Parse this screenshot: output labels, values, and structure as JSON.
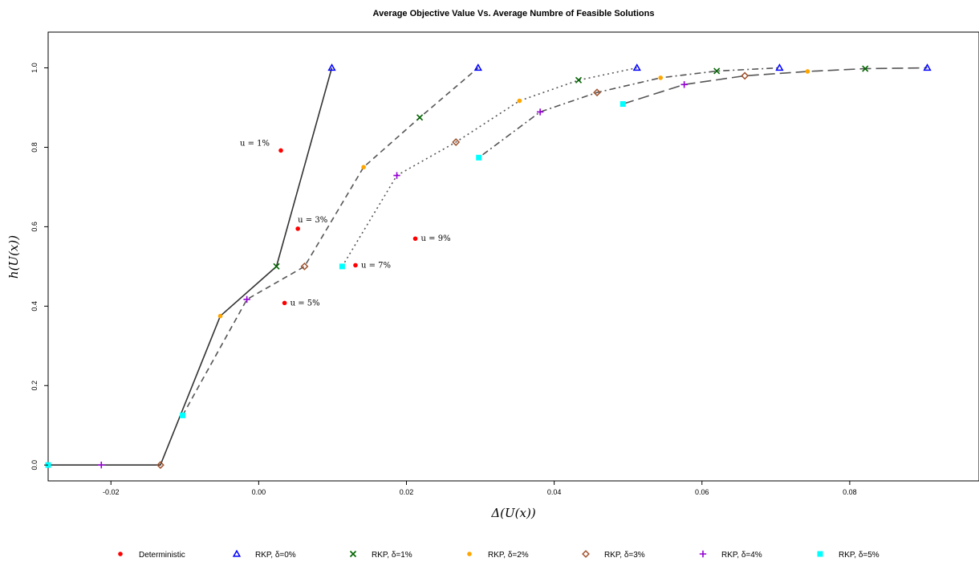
{
  "chart_data": {
    "type": "line",
    "title": "Average Objective Value Vs. Average Numbre of Feasible Solutions",
    "xlabel": "Δ(U(x))",
    "ylabel": "h(U(x))",
    "xlim": [
      -0.0285,
      0.0975
    ],
    "ylim": [
      -0.04,
      1.09
    ],
    "x_ticks": [
      -0.02,
      0.0,
      0.02,
      0.04,
      0.06,
      0.08
    ],
    "x_tick_labels": [
      "-0.02",
      "0.00",
      "0.02",
      "0.04",
      "0.06",
      "0.08"
    ],
    "y_ticks": [
      0.0,
      0.2,
      0.4,
      0.6,
      0.8,
      1.0
    ],
    "y_tick_labels": [
      "0.0",
      "0.2",
      "0.4",
      "0.6",
      "0.8",
      "1.0"
    ],
    "grid": false,
    "legend_position": "bottom",
    "lines": [
      {
        "style": "solid",
        "points": [
          [
            -0.0285,
            0.0
          ],
          [
            -0.0133,
            0.0
          ],
          [
            -0.0052,
            0.375
          ],
          [
            0.0024,
            0.5
          ],
          [
            0.0099,
            1.0
          ]
        ]
      },
      {
        "style": "dashed",
        "points": [
          [
            -0.0103,
            0.125
          ],
          [
            -0.0016,
            0.417
          ],
          [
            0.0062,
            0.5
          ],
          [
            0.0142,
            0.75
          ],
          [
            0.0218,
            0.875
          ],
          [
            0.0297,
            1.0
          ]
        ]
      },
      {
        "style": "dotted",
        "points": [
          [
            0.0113,
            0.5
          ],
          [
            0.0187,
            0.729
          ],
          [
            0.0267,
            0.813
          ],
          [
            0.0353,
            0.917
          ],
          [
            0.0433,
            0.969
          ],
          [
            0.0512,
            1.0
          ]
        ]
      },
      {
        "style": "dotdash",
        "points": [
          [
            0.0298,
            0.774
          ],
          [
            0.0381,
            0.889
          ],
          [
            0.0458,
            0.938
          ],
          [
            0.0544,
            0.975
          ],
          [
            0.062,
            0.992
          ],
          [
            0.0705,
            1.0
          ]
        ]
      },
      {
        "style": "longdash",
        "points": [
          [
            0.0493,
            0.909
          ],
          [
            0.0576,
            0.958
          ],
          [
            0.0658,
            0.98
          ],
          [
            0.0743,
            0.991
          ],
          [
            0.0821,
            0.998
          ],
          [
            0.0905,
            1.0
          ]
        ]
      }
    ],
    "series": [
      {
        "name": "Deterministic",
        "marker": "circle",
        "color": "#ff0000",
        "points": [
          [
            0.003,
            0.792
          ],
          [
            0.0053,
            0.595
          ],
          [
            0.0035,
            0.408
          ],
          [
            0.0131,
            0.503
          ],
          [
            0.0212,
            0.57
          ]
        ]
      },
      {
        "name": "RKP, δ=0%",
        "marker": "triangle",
        "color": "#0000ff",
        "points": [
          [
            0.0099,
            1.0
          ],
          [
            0.0297,
            1.0
          ],
          [
            0.0512,
            1.0
          ],
          [
            0.0705,
            1.0
          ],
          [
            0.0905,
            1.0
          ]
        ]
      },
      {
        "name": "RKP, δ=1%",
        "marker": "x",
        "color": "#006400",
        "points": [
          [
            0.0024,
            0.5
          ],
          [
            0.0218,
            0.875
          ],
          [
            0.0433,
            0.969
          ],
          [
            0.062,
            0.992
          ],
          [
            0.0821,
            0.998
          ]
        ]
      },
      {
        "name": "RKP, δ=2%",
        "marker": "filled-circle",
        "color": "#ffa500",
        "points": [
          [
            -0.0052,
            0.375
          ],
          [
            0.0142,
            0.75
          ],
          [
            0.0353,
            0.917
          ],
          [
            0.0544,
            0.975
          ],
          [
            0.0743,
            0.991
          ]
        ]
      },
      {
        "name": "RKP, δ=3%",
        "marker": "diamond",
        "color": "#a0522d",
        "points": [
          [
            -0.0133,
            0.0
          ],
          [
            0.0062,
            0.5
          ],
          [
            0.0267,
            0.813
          ],
          [
            0.0458,
            0.938
          ],
          [
            0.0658,
            0.98
          ]
        ]
      },
      {
        "name": "RKP, δ=4%",
        "marker": "plus",
        "color": "#9400d3",
        "points": [
          [
            -0.0213,
            0.0
          ],
          [
            -0.0016,
            0.417
          ],
          [
            0.0187,
            0.729
          ],
          [
            0.0381,
            0.889
          ],
          [
            0.0576,
            0.958
          ]
        ]
      },
      {
        "name": "RKP, δ=5%",
        "marker": "square",
        "color": "#00ffff",
        "points": [
          [
            -0.0285,
            0.0
          ],
          [
            -0.0103,
            0.125
          ],
          [
            0.0113,
            0.5
          ],
          [
            0.0298,
            0.774
          ],
          [
            0.0493,
            0.909
          ]
        ]
      }
    ],
    "annotations": [
      {
        "text": "u = 1%",
        "x": 0.003,
        "y": 0.792,
        "anchor": "left-of"
      },
      {
        "text": "u = 3%",
        "x": 0.0053,
        "y": 0.595,
        "anchor": "above-right"
      },
      {
        "text": "u = 5%",
        "x": 0.0035,
        "y": 0.408,
        "anchor": "right-of"
      },
      {
        "text": "u = 7%",
        "x": 0.0131,
        "y": 0.503,
        "anchor": "right-of"
      },
      {
        "text": "u = 9%",
        "x": 0.0212,
        "y": 0.57,
        "anchor": "right-of"
      }
    ]
  }
}
